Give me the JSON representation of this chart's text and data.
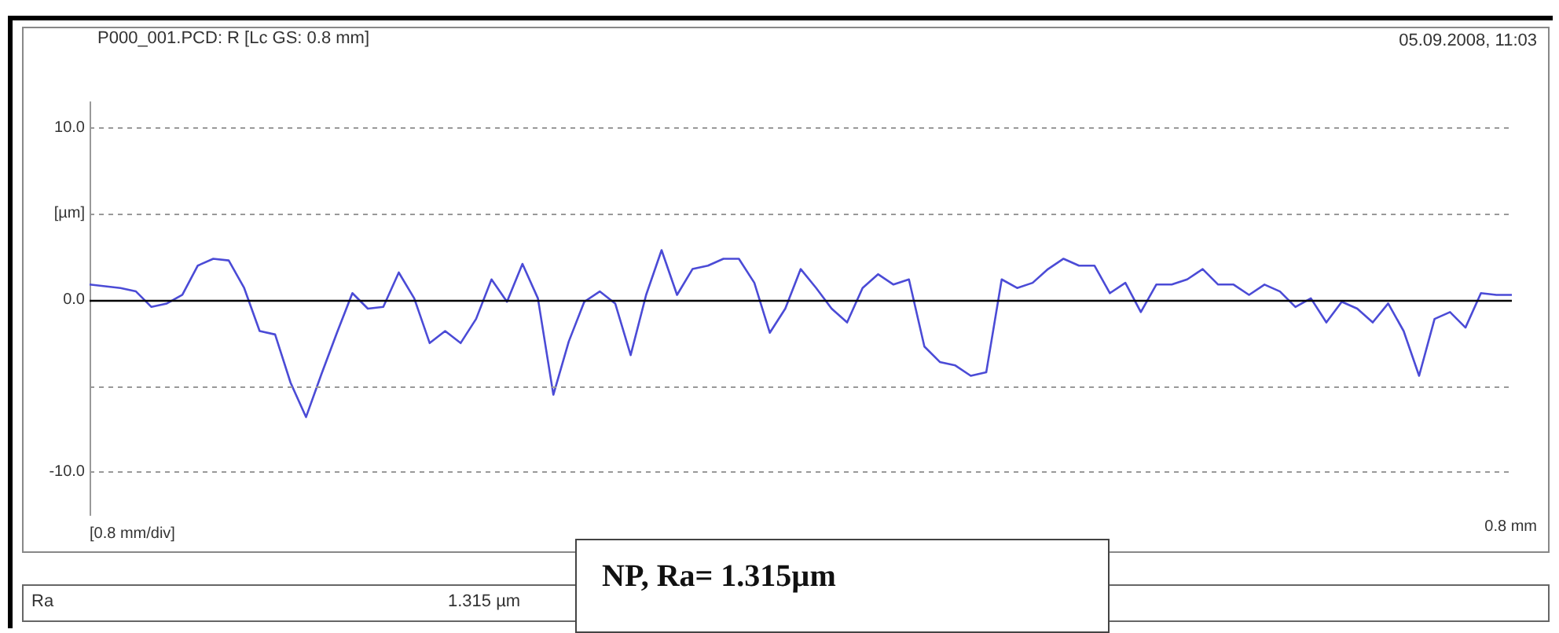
{
  "chart_data": {
    "type": "line",
    "title": "P000_001.PCD: R [Lc GS: 0.8 mm]",
    "xlabel": "[0.8 mm/div]",
    "annotations": [
      "05.09.2008, 11:03",
      "Ra",
      "1.315 µm",
      "NP, Ra= 1.315µm",
      "0.8 mm"
    ],
    "categories": [
      null,
      null,
      null,
      null,
      null,
      null,
      null,
      null,
      null,
      null,
      null,
      null,
      null,
      null,
      null,
      null,
      null,
      null,
      null,
      null,
      null,
      null,
      null,
      null,
      null,
      null,
      null,
      null,
      null,
      null,
      null,
      null,
      null,
      null,
      null,
      null,
      null,
      null,
      null,
      null,
      null,
      null,
      null,
      null,
      null,
      null,
      null,
      null,
      null,
      null,
      null,
      null,
      null,
      null,
      null,
      null,
      null,
      null,
      null,
      null,
      null,
      null,
      null,
      null,
      null,
      null,
      null,
      null,
      null,
      null,
      null,
      null,
      null,
      null,
      null,
      null,
      null,
      null,
      null,
      null,
      null,
      null,
      null,
      null,
      null,
      null,
      null,
      null,
      null,
      null,
      null,
      null,
      null
    ],
    "series": [
      {
        "color": "#4b4bd6",
        "values": [
          0.9,
          0.8,
          0.7,
          0.5,
          -0.4,
          -0.2,
          0.3,
          2.0,
          2.4,
          2.3,
          0.7,
          -1.8,
          -2.0,
          -4.8,
          -6.8,
          -4.3,
          -1.9,
          0.4,
          -0.5,
          -0.4,
          1.6,
          0.1,
          -2.5,
          -1.8,
          -2.5,
          -1.1,
          1.2,
          -0.1,
          2.1,
          0.1,
          -5.5,
          -2.4,
          -0.1,
          0.5,
          -0.2,
          -3.2,
          0.3,
          2.9,
          0.3,
          1.8,
          2.0,
          2.4,
          2.4,
          1.0,
          -1.9,
          -0.5,
          1.8,
          0.7,
          -0.5,
          -1.3,
          0.7,
          1.5,
          0.9,
          1.2,
          -2.7,
          -3.6,
          -3.8,
          -4.4,
          -4.2,
          1.2,
          0.7,
          1.0,
          1.8,
          2.4,
          2.0,
          2.0,
          0.4,
          1.0,
          -0.7,
          0.9,
          0.9,
          1.2,
          1.8,
          0.9,
          0.9,
          0.3,
          0.9,
          0.5,
          -0.4,
          0.1,
          -1.3,
          -0.1,
          -0.5,
          -1.3,
          -0.2,
          -1.8,
          -4.4,
          -1.1,
          -0.7,
          -1.6,
          0.4,
          0.3,
          0.3
        ]
      }
    ],
    "ylim": [
      -12.5,
      11.5
    ],
    "yticks": [
      {
        "value": -10,
        "label": "-10.0"
      },
      {
        "value": -5,
        "label": null
      },
      {
        "value": 0,
        "label": "0.0"
      },
      {
        "value": 5,
        "label": "[µm]"
      },
      {
        "value": 10,
        "label": "10.0"
      }
    ],
    "ref_lines": [
      {
        "axis": "y",
        "value": 0,
        "color": "#000000"
      }
    ],
    "grid": "y",
    "marker": "none",
    "line_style": "solid"
  }
}
